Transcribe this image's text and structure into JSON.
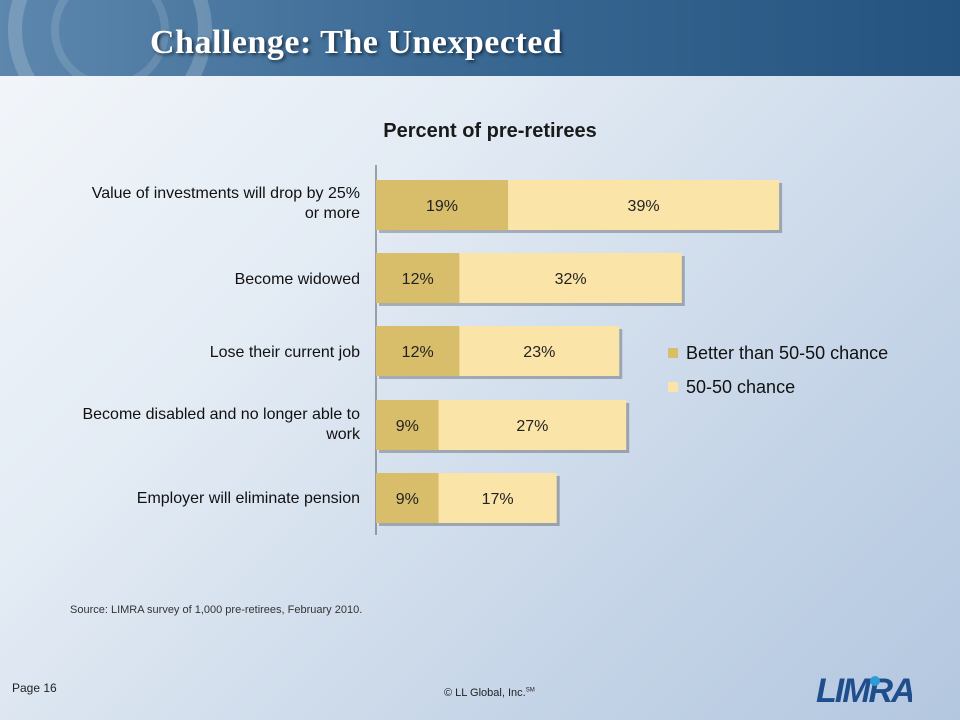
{
  "slide": {
    "title": "Challenge: The Unexpected",
    "source": "Source: LIMRA survey of 1,000 pre-retirees, February 2010.",
    "page": "Page 16",
    "copyright": "© LL Global, Inc.",
    "copyright_mark": "SM",
    "logo_text": "LIMRA"
  },
  "chart_data": {
    "type": "bar",
    "orientation": "horizontal",
    "stacked": true,
    "title": "Percent of pre-retirees",
    "categories": [
      "Value of investments will drop by 25% or more",
      "Become widowed",
      "Lose their current job",
      "Become disabled and no longer able to work",
      "Employer will eliminate pension"
    ],
    "series": [
      {
        "name": "Better than 50-50 chance",
        "values": [
          19,
          12,
          12,
          9,
          9
        ],
        "labels": [
          "19%",
          "12%",
          "12%",
          "9%",
          "9%"
        ],
        "color": "#d8bd6a"
      },
      {
        "name": "50-50 chance",
        "values": [
          39,
          32,
          23,
          27,
          17
        ],
        "labels": [
          "39%",
          "32%",
          "23%",
          "27%",
          "17%"
        ],
        "color": "#fae4a8"
      }
    ],
    "grid": false,
    "legend_position": "right"
  }
}
